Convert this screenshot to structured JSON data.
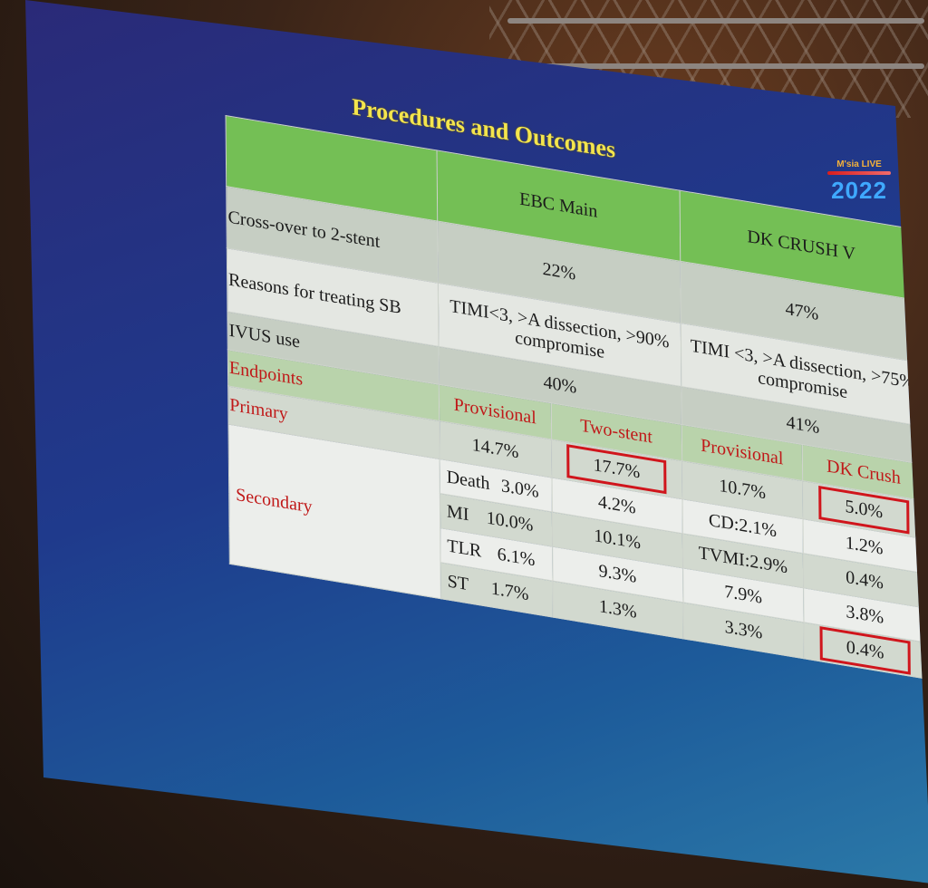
{
  "slide": {
    "title": "Procedures and Outcomes",
    "logo_text": "M'sia LIVE",
    "logo_year": "2022"
  },
  "table": {
    "col_headers": [
      "EBC Main",
      "DK CRUSH V"
    ],
    "rows": [
      {
        "label": "Cross-over to 2-stent",
        "ebc": "22%",
        "dk": "47%"
      },
      {
        "label": "Reasons for treating SB",
        "ebc": "TIMI<3, >A dissection, >90% compromise",
        "dk": "TIMI <3, >A dissection, >75% compromise"
      },
      {
        "label": "IVUS use",
        "ebc": "40%",
        "dk": "41%"
      }
    ],
    "endpoints_label": "Endpoints",
    "sub_headers": [
      "Provisional",
      "Two-stent",
      "Provisional",
      "DK Crush"
    ],
    "primary": {
      "label": "Primary",
      "values": [
        "14.7%",
        "17.7%",
        "10.7%",
        "5.0%"
      ]
    },
    "secondary_label": "Secondary",
    "secondary": [
      {
        "label": "Death",
        "values": [
          "3.0%",
          "4.2%",
          "CD:2.1%",
          "1.2%"
        ]
      },
      {
        "label": "MI",
        "values": [
          "10.0%",
          "10.1%",
          "TVMI:2.9%",
          "0.4%"
        ]
      },
      {
        "label": "TLR",
        "values": [
          "6.1%",
          "9.3%",
          "7.9%",
          "3.8%"
        ]
      },
      {
        "label": "ST",
        "values": [
          "1.7%",
          "1.3%",
          "3.3%",
          "0.4%"
        ]
      }
    ]
  }
}
